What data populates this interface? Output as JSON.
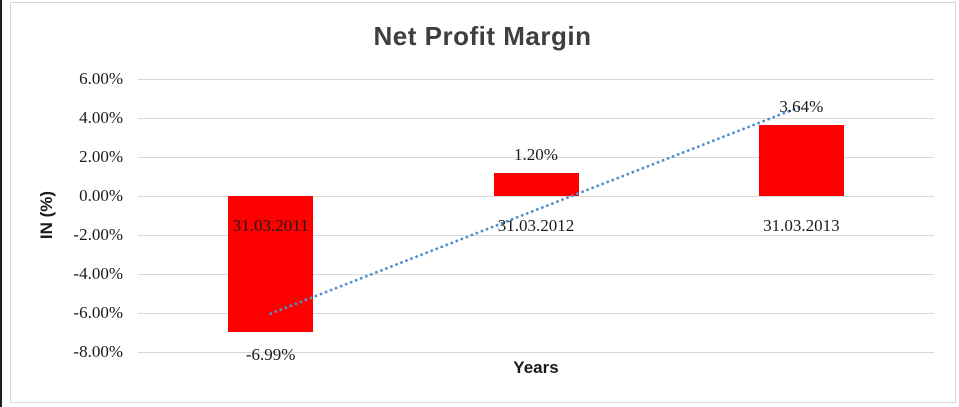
{
  "chart_data": {
    "type": "bar",
    "title": "Net Profit Margin",
    "xlabel": "Years",
    "ylabel": "IN (%)",
    "categories": [
      "31.03.2011",
      "31.03.2012",
      "31.03.2013"
    ],
    "values": [
      -6.99,
      1.2,
      3.64
    ],
    "value_labels": [
      "-6.99%",
      "1.20%",
      "3.64%"
    ],
    "ylim": [
      -8,
      6
    ],
    "ytick_step": 2,
    "ytick_labels": [
      "6.00%",
      "4.00%",
      "2.00%",
      "0.00%",
      "-2.00%",
      "-4.00%",
      "-6.00%",
      "-8.00%"
    ],
    "grid": true,
    "legend": "none",
    "bar_color": "#FE0000",
    "gridline_color": "#D9D9D9",
    "frame_color": "#D7D7D7",
    "title_color": "#3F3F3F",
    "text_color": "#1A1A1A",
    "trendline": {
      "type": "linear",
      "style": "dotted",
      "color": "#4F90CE"
    }
  }
}
